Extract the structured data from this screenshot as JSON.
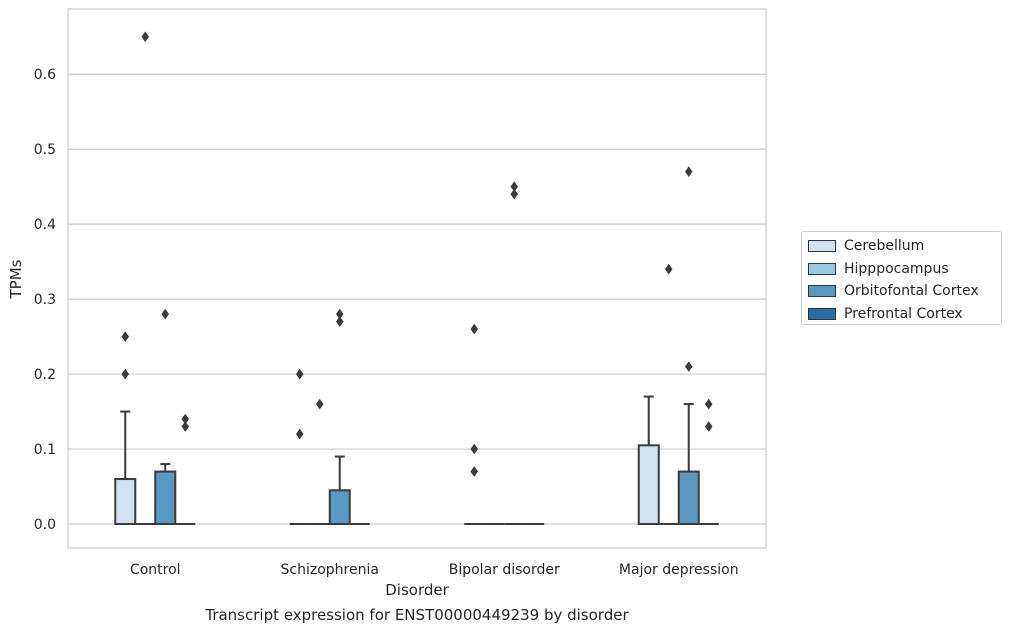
{
  "chart_data": {
    "type": "box",
    "title": "",
    "xlabel": "Disorder",
    "ylabel": "TPMs",
    "ylim": [
      -0.032,
      0.687
    ],
    "yticks": [
      0.0,
      0.1,
      0.2,
      0.3,
      0.4,
      0.5,
      0.6
    ],
    "ytick_labels": [
      "0.0",
      "0.1",
      "0.2",
      "0.3",
      "0.4",
      "0.5",
      "0.6"
    ],
    "grid": "horizontal",
    "legend_position": "right",
    "categories": [
      "Control",
      "Schizophrenia",
      "Bipolar disorder",
      "Major depression"
    ],
    "series": [
      {
        "name": "Cerebellum",
        "color": "#d2e1f0",
        "boxes": [
          {
            "q1": 0,
            "median": 0,
            "q3": 0.06,
            "whisker_low": 0,
            "whisker_high": 0.15,
            "outliers": [
              0.2,
              0.25
            ]
          },
          {
            "q1": 0,
            "median": 0,
            "q3": 0,
            "whisker_low": 0,
            "whisker_high": 0,
            "outliers": [
              0.12,
              0.2
            ]
          },
          {
            "q1": 0,
            "median": 0,
            "q3": 0,
            "whisker_low": 0,
            "whisker_high": 0,
            "outliers": [
              0.07,
              0.1,
              0.26
            ]
          },
          {
            "q1": 0,
            "median": 0,
            "q3": 0.105,
            "whisker_low": 0,
            "whisker_high": 0.17,
            "outliers": []
          }
        ]
      },
      {
        "name": "Hipppocampus",
        "color": "#9ac8e0",
        "boxes": [
          {
            "q1": 0,
            "median": 0,
            "q3": 0,
            "whisker_low": 0,
            "whisker_high": 0,
            "outliers": [
              0.65
            ]
          },
          {
            "q1": 0,
            "median": 0,
            "q3": 0,
            "whisker_low": 0,
            "whisker_high": 0,
            "outliers": [
              0.16
            ]
          },
          {
            "q1": 0,
            "median": 0,
            "q3": 0,
            "whisker_low": 0,
            "whisker_high": 0,
            "outliers": []
          },
          {
            "q1": 0,
            "median": 0,
            "q3": 0,
            "whisker_low": 0,
            "whisker_high": 0,
            "outliers": [
              0.34
            ]
          }
        ]
      },
      {
        "name": "Orbitofontal Cortex",
        "color": "#5a97c1",
        "boxes": [
          {
            "q1": 0,
            "median": 0,
            "q3": 0.07,
            "whisker_low": 0,
            "whisker_high": 0.08,
            "outliers": [
              0.28
            ]
          },
          {
            "q1": 0,
            "median": 0,
            "q3": 0.045,
            "whisker_low": 0,
            "whisker_high": 0.09,
            "outliers": [
              0.27,
              0.28
            ]
          },
          {
            "q1": 0,
            "median": 0,
            "q3": 0,
            "whisker_low": 0,
            "whisker_high": 0,
            "outliers": [
              0.44,
              0.45
            ]
          },
          {
            "q1": 0,
            "median": 0,
            "q3": 0.07,
            "whisker_low": 0,
            "whisker_high": 0.16,
            "outliers": [
              0.21,
              0.47
            ]
          }
        ]
      },
      {
        "name": "Prefrontal Cortex",
        "color": "#2b6ca3",
        "boxes": [
          {
            "q1": 0,
            "median": 0,
            "q3": 0,
            "whisker_low": 0,
            "whisker_high": 0,
            "outliers": [
              0.13,
              0.14
            ]
          },
          {
            "q1": 0,
            "median": 0,
            "q3": 0,
            "whisker_low": 0,
            "whisker_high": 0,
            "outliers": []
          },
          {
            "q1": 0,
            "median": 0,
            "q3": 0,
            "whisker_low": 0,
            "whisker_high": 0,
            "outliers": []
          },
          {
            "q1": 0,
            "median": 0,
            "q3": 0,
            "whisker_low": 0,
            "whisker_high": 0,
            "outliers": [
              0.13,
              0.16
            ]
          }
        ]
      }
    ],
    "caption": "Transcript expression for ENST00000449239 by disorder"
  }
}
